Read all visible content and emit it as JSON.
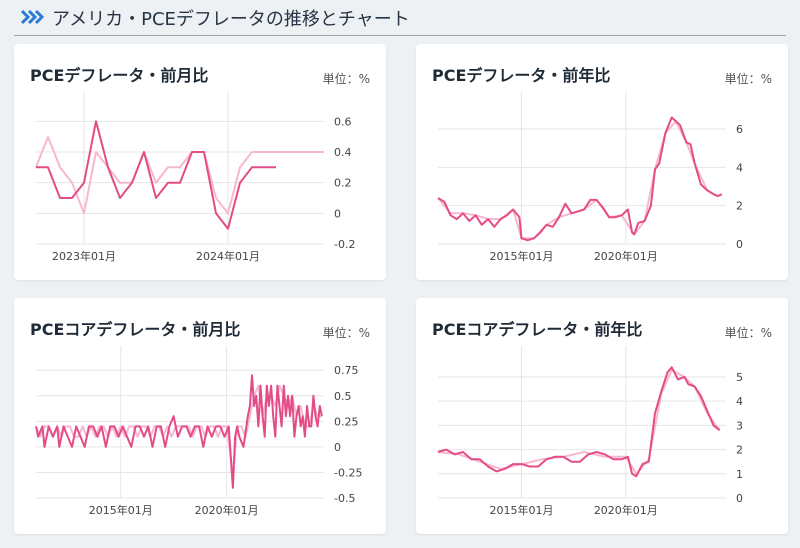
{
  "header": {
    "title": "アメリカ・PCEデフレータの推移とチャート",
    "chevron_icon": "double-chevron-right-icon",
    "accent": "#2b7bd6"
  },
  "colors": {
    "primary": "#e44c88",
    "secondary": "#f7b8cf",
    "grid": "#e6e6e6"
  },
  "charts": [
    {
      "title": "PCEデフレータ・前月比",
      "unit": "単位：%",
      "chart_data": {
        "type": "line",
        "x_range": [
          0,
          24
        ],
        "ylim": [
          -0.2,
          0.7
        ],
        "yticks": [
          0.6,
          0.4,
          0.2,
          0,
          -0.2
        ],
        "ytick_labels": [
          "0.6",
          "0.4",
          "0.2",
          "0",
          "-0.2"
        ],
        "xticks": [
          {
            "x": 4,
            "label": "2023年01月"
          },
          {
            "x": 16,
            "label": "2024年01月"
          }
        ],
        "series": [
          {
            "role": "secondary",
            "x": [
              0,
              1,
              2,
              3,
              4,
              5,
              6,
              7,
              8,
              9,
              10,
              11,
              12,
              13,
              14,
              15,
              16,
              17,
              18,
              19,
              20,
              21,
              22,
              23,
              24
            ],
            "values": [
              0.3,
              0.5,
              0.3,
              0.2,
              0.0,
              0.4,
              0.3,
              0.2,
              0.2,
              0.4,
              0.2,
              0.3,
              0.3,
              0.4,
              0.4,
              0.1,
              0.0,
              0.3,
              0.4,
              0.4,
              0.4,
              0.4,
              0.4,
              0.4,
              0.4
            ]
          },
          {
            "role": "primary",
            "x": [
              0,
              1,
              2,
              3,
              4,
              5,
              6,
              7,
              8,
              9,
              10,
              11,
              12,
              13,
              14,
              15,
              16,
              17,
              18,
              19,
              20
            ],
            "values": [
              0.3,
              0.3,
              0.1,
              0.1,
              0.2,
              0.6,
              0.3,
              0.1,
              0.2,
              0.4,
              0.1,
              0.2,
              0.2,
              0.4,
              0.4,
              0.0,
              -0.1,
              0.2,
              0.3,
              0.3,
              0.3
            ]
          }
        ]
      }
    },
    {
      "title": "PCEデフレータ・前年比",
      "unit": "単位：%",
      "chart_data": {
        "type": "line",
        "x_range": [
          2011.0,
          2024.8
        ],
        "ylim": [
          0,
          7.2
        ],
        "yticks": [
          6,
          4,
          2,
          0
        ],
        "ytick_labels": [
          "6",
          "4",
          "2",
          "0"
        ],
        "xticks": [
          {
            "x": 2015,
            "label": "2015年01月"
          },
          {
            "x": 2020,
            "label": "2020年01月"
          }
        ],
        "series": [
          {
            "role": "primary",
            "x": [
              2011.0,
              2011.3,
              2011.6,
              2011.9,
              2012.2,
              2012.5,
              2012.8,
              2013.1,
              2013.4,
              2013.7,
              2014.0,
              2014.3,
              2014.6,
              2014.9,
              2015.0,
              2015.3,
              2015.6,
              2015.9,
              2016.2,
              2016.5,
              2016.8,
              2017.1,
              2017.4,
              2017.7,
              2018.0,
              2018.3,
              2018.6,
              2018.9,
              2019.2,
              2019.5,
              2019.8,
              2020.1,
              2020.3,
              2020.4,
              2020.6,
              2020.9,
              2021.2,
              2021.4,
              2021.6,
              2021.9,
              2022.2,
              2022.4,
              2022.6,
              2022.9,
              2023.1,
              2023.3,
              2023.6,
              2023.9,
              2024.2,
              2024.4,
              2024.6
            ],
            "values": [
              2.4,
              2.2,
              1.5,
              1.3,
              1.6,
              1.2,
              1.5,
              1.0,
              1.3,
              0.9,
              1.3,
              1.5,
              1.8,
              1.4,
              0.3,
              0.2,
              0.3,
              0.6,
              1.0,
              0.9,
              1.4,
              2.1,
              1.6,
              1.7,
              1.8,
              2.3,
              2.3,
              1.9,
              1.4,
              1.4,
              1.5,
              1.8,
              0.6,
              0.5,
              1.1,
              1.2,
              2.0,
              3.9,
              4.2,
              5.8,
              6.6,
              6.4,
              6.2,
              5.3,
              5.2,
              4.2,
              3.1,
              2.8,
              2.6,
              2.5,
              2.6
            ]
          },
          {
            "role": "secondary",
            "x": [
              2011.0,
              2011.6,
              2012.2,
              2012.8,
              2013.4,
              2014.0,
              2014.6,
              2015.0,
              2015.6,
              2016.2,
              2016.8,
              2017.4,
              2018.0,
              2018.6,
              2019.2,
              2019.8,
              2020.4,
              2020.9,
              2021.4,
              2021.9,
              2022.4,
              2022.9,
              2023.3,
              2023.9,
              2024.4
            ],
            "values": [
              2.4,
              1.6,
              1.6,
              1.5,
              1.3,
              1.3,
              1.8,
              0.3,
              0.3,
              1.0,
              1.4,
              1.6,
              1.8,
              2.3,
              1.4,
              1.5,
              0.5,
              1.2,
              3.9,
              5.8,
              6.4,
              5.3,
              4.2,
              2.8,
              2.5
            ]
          }
        ]
      }
    },
    {
      "title": "PCEコアデフレータ・前月比",
      "unit": "単位：%",
      "chart_data": {
        "type": "line",
        "x_range": [
          2011.0,
          2024.6
        ],
        "ylim": [
          -0.5,
          0.85
        ],
        "yticks": [
          0.75,
          0.5,
          0.25,
          0,
          -0.25,
          -0.5
        ],
        "ytick_labels": [
          "0.75",
          "0.5",
          "0.25",
          "0",
          "-0.25",
          "-0.5"
        ],
        "xticks": [
          {
            "x": 2015,
            "label": "2015年01月"
          },
          {
            "x": 2020,
            "label": "2020年01月"
          }
        ],
        "series": [
          {
            "role": "secondary",
            "x": [
              2011.0,
              2011.2,
              2011.4,
              2011.6,
              2011.8,
              2012.0,
              2012.2,
              2012.4,
              2012.6,
              2012.8,
              2013.0,
              2013.2,
              2013.4,
              2013.6,
              2013.8,
              2014.0,
              2014.2,
              2014.4,
              2014.6,
              2014.8,
              2015.0,
              2015.2,
              2015.4,
              2015.6,
              2015.8,
              2016.0,
              2016.2,
              2016.4,
              2016.6,
              2016.8,
              2017.0,
              2017.2,
              2017.4,
              2017.6,
              2017.8,
              2018.0,
              2018.2,
              2018.4,
              2018.6,
              2018.8,
              2019.0,
              2019.2,
              2019.4,
              2019.6,
              2019.8,
              2020.0,
              2020.2,
              2020.3,
              2020.5,
              2020.7,
              2020.9,
              2021.1,
              2021.3,
              2021.5,
              2021.7,
              2021.9,
              2022.1,
              2022.3,
              2022.5,
              2022.7,
              2022.9,
              2023.1,
              2023.3,
              2023.5,
              2023.7,
              2023.9,
              2024.1,
              2024.3,
              2024.5
            ],
            "values": [
              0.2,
              0.1,
              0.2,
              0.2,
              0.1,
              0.2,
              0.1,
              0.2,
              0.2,
              0.1,
              0.1,
              0.2,
              0.1,
              0.2,
              0.1,
              0.2,
              0.2,
              0.1,
              0.2,
              0.1,
              0.2,
              0.1,
              0.2,
              0.2,
              0.1,
              0.2,
              0.2,
              0.1,
              0.2,
              0.2,
              0.1,
              0.2,
              0.1,
              0.2,
              0.2,
              0.2,
              0.2,
              0.1,
              0.2,
              0.2,
              0.1,
              0.2,
              0.2,
              0.1,
              0.2,
              0.2,
              -0.1,
              -0.3,
              0.2,
              0.2,
              0.1,
              0.3,
              0.5,
              0.6,
              0.3,
              0.5,
              0.5,
              0.4,
              0.6,
              0.5,
              0.4,
              0.5,
              0.3,
              0.4,
              0.2,
              0.2,
              0.4,
              0.3,
              0.3
            ]
          },
          {
            "role": "primary",
            "x": [
              2011.0,
              2011.1,
              2011.3,
              2011.4,
              2011.6,
              2011.8,
              2012.0,
              2012.1,
              2012.3,
              2012.5,
              2012.7,
              2012.9,
              2013.1,
              2013.3,
              2013.5,
              2013.7,
              2013.9,
              2014.1,
              2014.3,
              2014.5,
              2014.7,
              2014.9,
              2015.1,
              2015.3,
              2015.5,
              2015.7,
              2015.9,
              2016.1,
              2016.3,
              2016.5,
              2016.7,
              2016.9,
              2017.1,
              2017.3,
              2017.5,
              2017.7,
              2017.9,
              2018.1,
              2018.3,
              2018.5,
              2018.7,
              2018.9,
              2019.1,
              2019.3,
              2019.5,
              2019.7,
              2019.9,
              2020.1,
              2020.2,
              2020.3,
              2020.4,
              2020.5,
              2020.6,
              2020.8,
              2021.0,
              2021.1,
              2021.2,
              2021.3,
              2021.4,
              2021.5,
              2021.6,
              2021.7,
              2021.8,
              2021.9,
              2022.0,
              2022.1,
              2022.2,
              2022.3,
              2022.4,
              2022.5,
              2022.6,
              2022.7,
              2022.8,
              2022.9,
              2023.0,
              2023.1,
              2023.2,
              2023.3,
              2023.4,
              2023.5,
              2023.6,
              2023.7,
              2023.8,
              2023.9,
              2024.0,
              2024.1,
              2024.2,
              2024.3,
              2024.4,
              2024.5
            ],
            "values": [
              0.2,
              0.1,
              0.2,
              0.0,
              0.2,
              0.1,
              0.2,
              0.0,
              0.2,
              0.1,
              0.0,
              0.2,
              0.1,
              0.0,
              0.2,
              0.2,
              0.1,
              0.2,
              0.0,
              0.2,
              0.2,
              0.1,
              0.2,
              0.1,
              0.0,
              0.2,
              0.2,
              0.1,
              0.2,
              0.0,
              0.2,
              0.2,
              0.0,
              0.2,
              0.3,
              0.1,
              0.2,
              0.2,
              0.1,
              0.2,
              0.2,
              0.0,
              0.2,
              0.1,
              0.2,
              0.2,
              0.1,
              0.2,
              -0.1,
              -0.4,
              0.1,
              0.2,
              0.1,
              0.0,
              0.3,
              0.4,
              0.7,
              0.4,
              0.5,
              0.2,
              0.6,
              0.3,
              0.1,
              0.6,
              0.4,
              0.6,
              0.3,
              0.1,
              0.6,
              0.4,
              0.2,
              0.6,
              0.3,
              0.5,
              0.3,
              0.5,
              0.1,
              0.3,
              0.4,
              0.2,
              0.3,
              0.1,
              0.4,
              0.2,
              0.2,
              0.5,
              0.3,
              0.2,
              0.4,
              0.3
            ]
          }
        ]
      }
    },
    {
      "title": "PCEコアデフレータ・前年比",
      "unit": "単位：%",
      "chart_data": {
        "type": "line",
        "x_range": [
          2011.0,
          2024.8
        ],
        "ylim": [
          0,
          5.7
        ],
        "yticks": [
          5,
          4,
          3,
          2,
          1,
          0
        ],
        "ytick_labels": [
          "5",
          "4",
          "3",
          "2",
          "1",
          "0"
        ],
        "xticks": [
          {
            "x": 2015,
            "label": "2015年01月"
          },
          {
            "x": 2020,
            "label": "2020年01月"
          }
        ],
        "series": [
          {
            "role": "primary",
            "x": [
              2011.0,
              2011.4,
              2011.8,
              2012.2,
              2012.6,
              2013.0,
              2013.4,
              2013.8,
              2014.2,
              2014.6,
              2015.0,
              2015.4,
              2015.8,
              2016.2,
              2016.6,
              2017.0,
              2017.4,
              2017.8,
              2018.2,
              2018.6,
              2019.0,
              2019.4,
              2019.8,
              2020.1,
              2020.3,
              2020.5,
              2020.8,
              2021.1,
              2021.4,
              2021.7,
              2022.0,
              2022.2,
              2022.5,
              2022.8,
              2023.0,
              2023.3,
              2023.6,
              2023.9,
              2024.2,
              2024.5
            ],
            "values": [
              1.9,
              2.0,
              1.8,
              1.9,
              1.6,
              1.6,
              1.3,
              1.1,
              1.2,
              1.4,
              1.4,
              1.3,
              1.3,
              1.6,
              1.7,
              1.7,
              1.5,
              1.5,
              1.8,
              1.9,
              1.8,
              1.6,
              1.6,
              1.7,
              1.0,
              0.9,
              1.4,
              1.5,
              3.5,
              4.4,
              5.2,
              5.4,
              4.9,
              5.0,
              4.7,
              4.6,
              4.2,
              3.6,
              3.0,
              2.8
            ]
          },
          {
            "role": "secondary",
            "x": [
              2011.0,
              2012.0,
              2013.0,
              2014.0,
              2015.0,
              2016.0,
              2017.0,
              2018.0,
              2019.0,
              2020.0,
              2020.5,
              2021.1,
              2021.7,
              2022.2,
              2022.8,
              2023.3,
              2023.9,
              2024.5
            ],
            "values": [
              1.9,
              1.8,
              1.5,
              1.2,
              1.4,
              1.6,
              1.7,
              1.9,
              1.7,
              1.7,
              1.0,
              1.6,
              4.3,
              5.3,
              5.0,
              4.6,
              3.5,
              2.8
            ]
          }
        ]
      }
    }
  ]
}
